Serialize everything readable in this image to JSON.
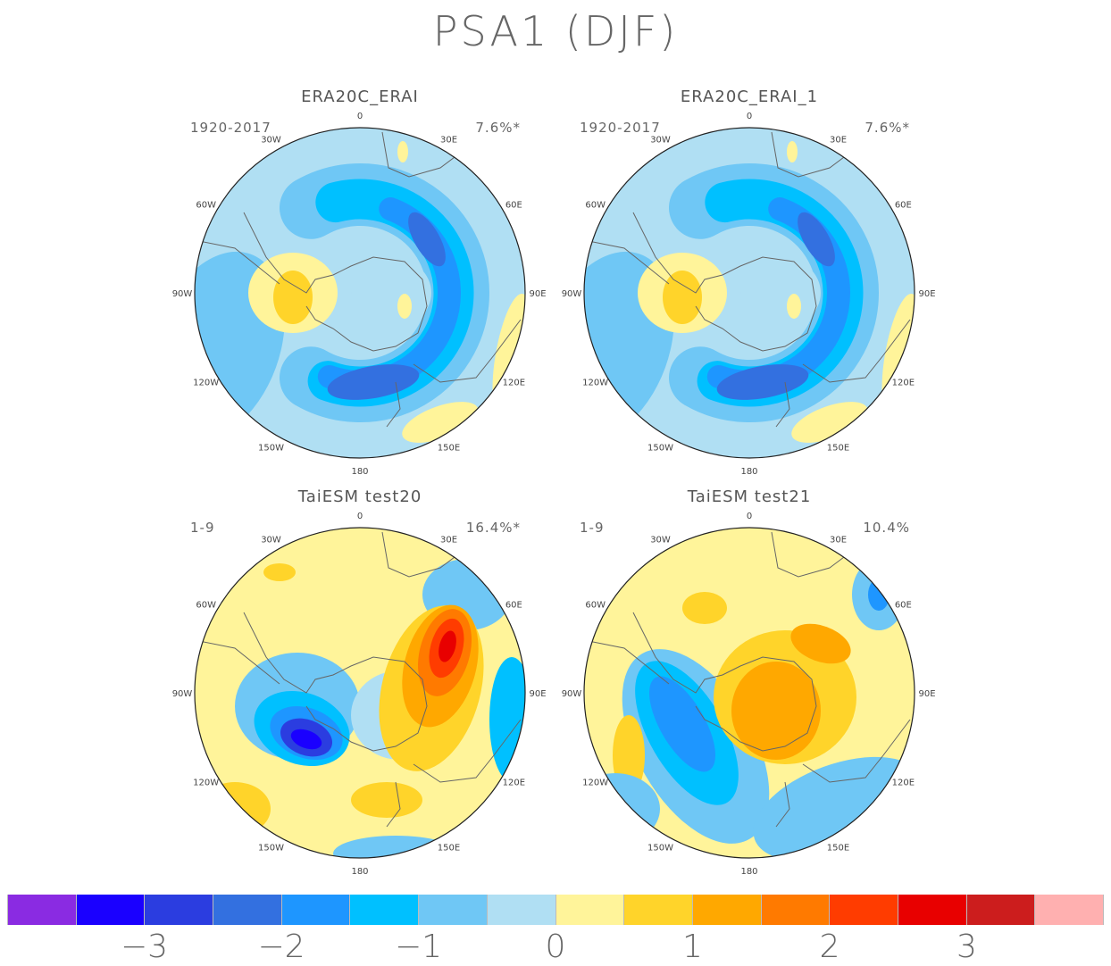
{
  "title": "PSA1 (DJF)",
  "panels": [
    {
      "name": "ERA20C_ERAI",
      "period": "1920-2017",
      "variance": "7.6%*"
    },
    {
      "name": "ERA20C_ERAI_1",
      "period": "1920-2017",
      "variance": "7.6%*"
    },
    {
      "name": "TaiESM test20",
      "period": "1-9",
      "variance": "16.4%*"
    },
    {
      "name": "TaiESM test21",
      "period": "1-9",
      "variance": "10.4%"
    }
  ],
  "longitude_labels": [
    "0",
    "30E",
    "60E",
    "90E",
    "120E",
    "150E",
    "180",
    "150W",
    "120W",
    "90W",
    "60W",
    "30W"
  ],
  "colorbar": {
    "colors": [
      "#8a2be2",
      "#1a00ff",
      "#2b3de0",
      "#3370e0",
      "#1e96ff",
      "#00c0ff",
      "#6fc7f5",
      "#b0dff3",
      "#fff49a",
      "#ffd42a",
      "#ffa800",
      "#ff7a00",
      "#ff3c00",
      "#e80000",
      "#cc1d1d",
      "#ffb0b0"
    ],
    "tick_labels": [
      "−3",
      "−2",
      "−1",
      "0",
      "1",
      "2",
      "3"
    ]
  }
}
